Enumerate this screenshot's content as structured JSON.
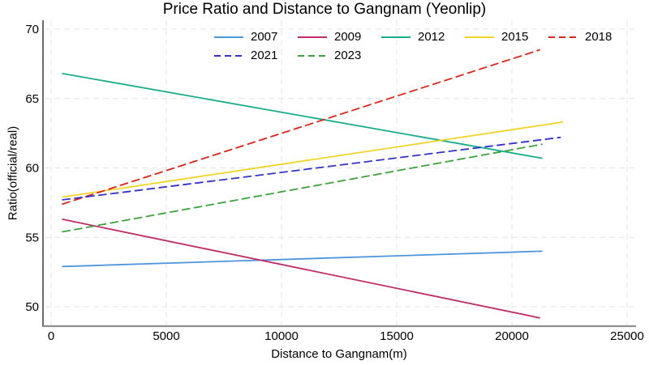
{
  "chart_data": {
    "type": "line",
    "title": "Price Ratio and Distance to Gangnam (Yeonlip)",
    "xlabel": "Distance to Gangnam(m)",
    "ylabel": "Ratio(official/real)",
    "x_ticks": [
      0,
      5000,
      10000,
      15000,
      20000,
      25000
    ],
    "y_ticks": [
      50,
      55,
      60,
      65,
      70
    ],
    "xlim": [
      -350,
      25400
    ],
    "ylim": [
      48.6,
      70.6
    ],
    "grid": true,
    "legend_position": "top-center-inside",
    "legend_rows": [
      [
        "2007",
        "2009",
        "2012",
        "2015",
        "2018"
      ],
      [
        "2021",
        "2023"
      ]
    ],
    "series": [
      {
        "name": "2007",
        "color": "#4d95dd",
        "style": "solid",
        "points": [
          [
            500,
            52.9
          ],
          [
            21300,
            54.0
          ]
        ]
      },
      {
        "name": "2009",
        "color": "#bf2a68",
        "style": "solid",
        "points": [
          [
            500,
            56.3
          ],
          [
            21200,
            49.2
          ]
        ]
      },
      {
        "name": "2012",
        "color": "#17ad8c",
        "style": "solid",
        "points": [
          [
            500,
            66.8
          ],
          [
            21300,
            60.7
          ]
        ]
      },
      {
        "name": "2015",
        "color": "#f2d426",
        "style": "solid",
        "points": [
          [
            500,
            57.9
          ],
          [
            22200,
            63.3
          ]
        ]
      },
      {
        "name": "2018",
        "color": "#df2318",
        "style": "dashed",
        "points": [
          [
            500,
            57.4
          ],
          [
            21200,
            68.5
          ]
        ]
      },
      {
        "name": "2021",
        "color": "#3531cb",
        "style": "dashed",
        "points": [
          [
            500,
            57.7
          ],
          [
            22100,
            62.2
          ]
        ]
      },
      {
        "name": "2023",
        "color": "#3aa238",
        "style": "dashed",
        "points": [
          [
            500,
            55.4
          ],
          [
            21300,
            61.7
          ]
        ]
      }
    ],
    "colors": {
      "grid": "#e4e4e4",
      "y_axis_line": "#2f2f2f",
      "x_axis_line": "#8f8f8f",
      "text": "#000000",
      "background": "#ffffff"
    }
  }
}
